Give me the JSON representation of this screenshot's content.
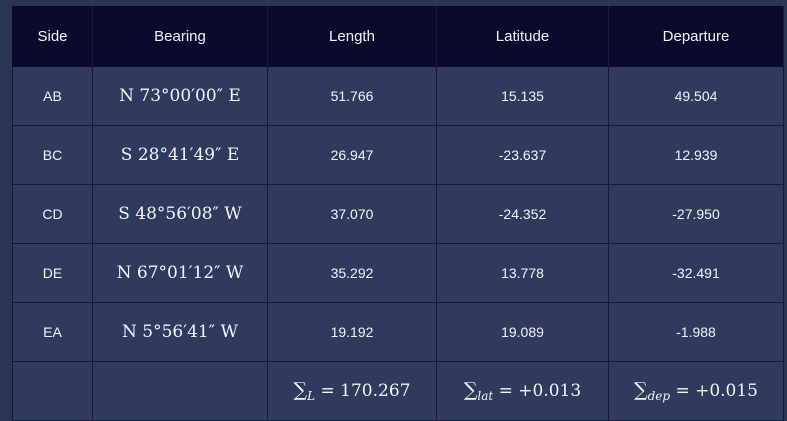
{
  "header": {
    "side": "Side",
    "bearing": "Bearing",
    "length": "Length",
    "latitude": "Latitude",
    "departure": "Departure"
  },
  "rows": [
    {
      "side": "AB",
      "bearing": "N 73°00′00″ E",
      "length": "51.766",
      "latitude": "15.135",
      "departure": "49.504"
    },
    {
      "side": "BC",
      "bearing": "S 28°41′49″ E",
      "length": "26.947",
      "latitude": "-23.637",
      "departure": "12.939"
    },
    {
      "side": "CD",
      "bearing": "S 48°56′08″ W",
      "length": "37.070",
      "latitude": "-24.352",
      "departure": "-27.950"
    },
    {
      "side": "DE",
      "bearing": "N 67°01′12″ W",
      "length": "35.292",
      "latitude": "13.778",
      "departure": "-32.491"
    },
    {
      "side": "EA",
      "bearing": "N 5°56′41″ W",
      "length": "19.192",
      "latitude": "19.089",
      "departure": "-1.988"
    }
  ],
  "totals": {
    "length": {
      "symbol": "∑",
      "sub": "L",
      "value": "= 170.267"
    },
    "latitude": {
      "symbol": "∑",
      "sub": "lat",
      "value": "= +0.013"
    },
    "departure": {
      "symbol": "∑",
      "sub": "dep",
      "value": "= +0.015"
    }
  }
}
